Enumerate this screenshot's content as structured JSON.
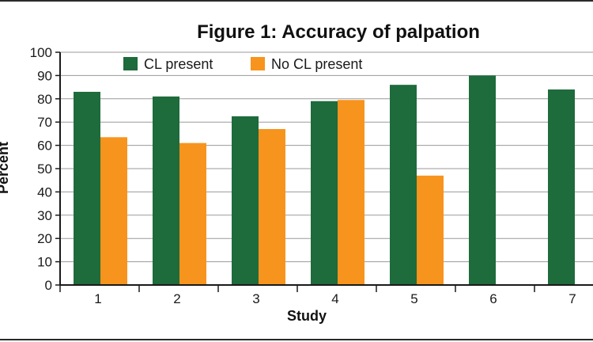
{
  "chart_data": {
    "type": "bar",
    "title": "Figure 1: Accuracy of palpation",
    "xlabel": "Study",
    "ylabel": "Percent",
    "categories": [
      "1",
      "2",
      "3",
      "4",
      "5",
      "6",
      "7"
    ],
    "series": [
      {
        "name": "CL present",
        "color": "#1e6b3c",
        "values": [
          83,
          81,
          72.5,
          79,
          86,
          90,
          84
        ]
      },
      {
        "name": "No CL present",
        "color": "#f7941d",
        "values": [
          63.5,
          61,
          67,
          79.5,
          47,
          null,
          null
        ]
      }
    ],
    "ylim": [
      0,
      100
    ],
    "yticks": [
      0,
      10,
      20,
      30,
      40,
      50,
      60,
      70,
      80,
      90,
      100
    ],
    "grid": true,
    "legend_position": "top-left"
  }
}
